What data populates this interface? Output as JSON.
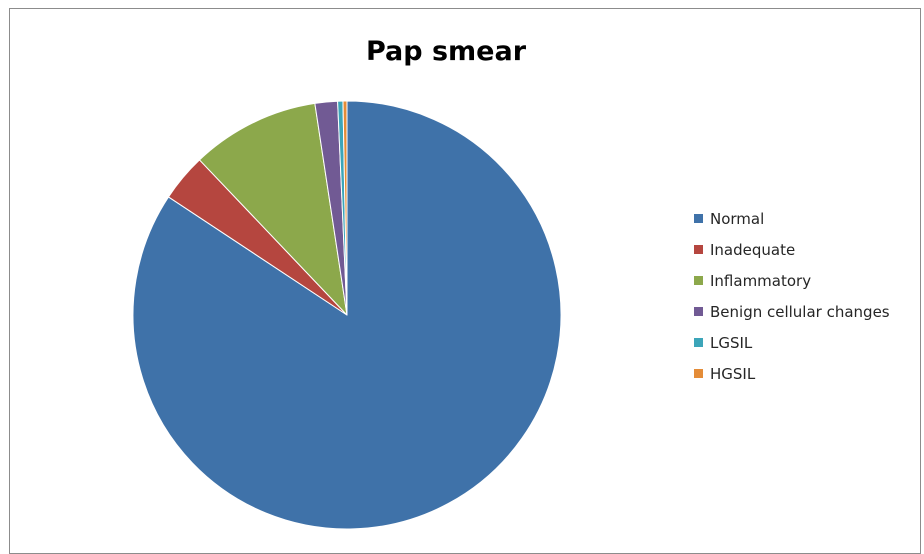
{
  "chart_data": {
    "type": "pie",
    "title": "Pap smear",
    "categories": [
      "Normal",
      "Inadequate",
      "Inflammatory",
      "Benign cellular changes",
      "LGSIL",
      "HGSIL"
    ],
    "values": [
      84.3,
      3.6,
      9.7,
      1.7,
      0.4,
      0.3
    ],
    "colors": [
      "#3f72a9",
      "#b5463f",
      "#8ca84b",
      "#715a94",
      "#3ca5b9",
      "#e48c38"
    ],
    "legend_position": "right"
  }
}
